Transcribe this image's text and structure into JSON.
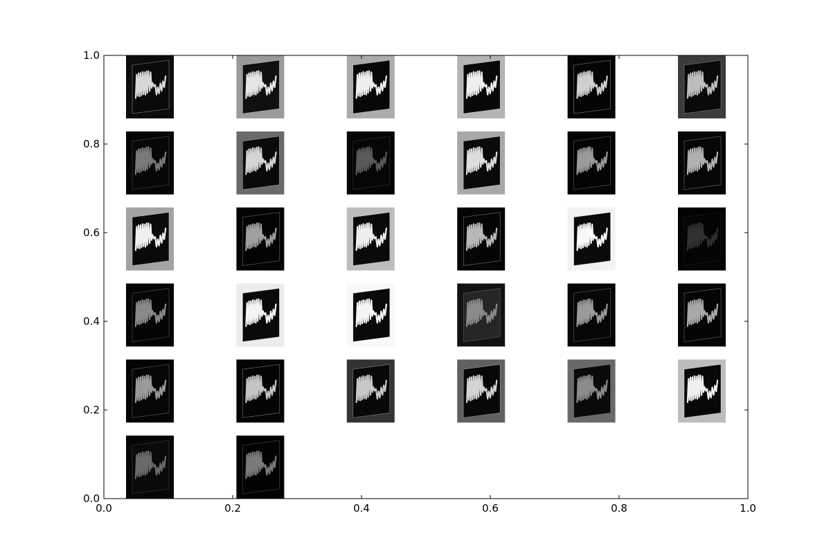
{
  "chart_data": {
    "type": "image-grid",
    "title": "",
    "xlabel": "",
    "ylabel": "",
    "xlim": [
      0.0,
      1.0
    ],
    "ylim": [
      0.0,
      1.0
    ],
    "grid": false,
    "legend": "none",
    "x_ticks": [
      "0.0",
      "0.2",
      "0.4",
      "0.6",
      "0.8",
      "1.0"
    ],
    "y_ticks": [
      "0.0",
      "0.2",
      "0.4",
      "0.6",
      "0.8",
      "1.0"
    ],
    "grid_layout": {
      "rows": 6,
      "columns": 6,
      "tiles_shown": 32
    },
    "tile_content": "grayscale feature-map thumbnail of a tilted sheet with a wavy trace",
    "tiles": [
      {
        "row": 1,
        "col": 1,
        "background": "#0c0c0c",
        "sheet": "#0a0a0a",
        "trace": "#d8d8d8"
      },
      {
        "row": 1,
        "col": 2,
        "background": "#9a9a9a",
        "sheet": "#101010",
        "trace": "#e6e6e6"
      },
      {
        "row": 1,
        "col": 3,
        "background": "#ababab",
        "sheet": "#080808",
        "trace": "#eeeeee"
      },
      {
        "row": 1,
        "col": 4,
        "background": "#b4b4b4",
        "sheet": "#080808",
        "trace": "#eeeeee"
      },
      {
        "row": 1,
        "col": 5,
        "background": "#050505",
        "sheet": "#050505",
        "trace": "#d0d0d0"
      },
      {
        "row": 1,
        "col": 6,
        "background": "#3c3c3c",
        "sheet": "#0a0a0a",
        "trace": "#bdbdbd"
      },
      {
        "row": 2,
        "col": 1,
        "background": "#050505",
        "sheet": "#070707",
        "trace": "#7a7a7a"
      },
      {
        "row": 2,
        "col": 2,
        "background": "#6a6a6a",
        "sheet": "#0a0a0a",
        "trace": "#d4d4d4"
      },
      {
        "row": 2,
        "col": 3,
        "background": "#040404",
        "sheet": "#060606",
        "trace": "#5a5a5a"
      },
      {
        "row": 2,
        "col": 4,
        "background": "#a8a8a8",
        "sheet": "#0a0a0a",
        "trace": "#dddddd"
      },
      {
        "row": 2,
        "col": 5,
        "background": "#040404",
        "sheet": "#040404",
        "trace": "#9a9a9a"
      },
      {
        "row": 2,
        "col": 6,
        "background": "#060606",
        "sheet": "#060606",
        "trace": "#b0b0b0"
      },
      {
        "row": 3,
        "col": 1,
        "background": "#a3a3a3",
        "sheet": "#0a0a0a",
        "trace": "#f0f0f0"
      },
      {
        "row": 3,
        "col": 2,
        "background": "#040404",
        "sheet": "#040404",
        "trace": "#a0a0a0"
      },
      {
        "row": 3,
        "col": 3,
        "background": "#bdbdbd",
        "sheet": "#0a0a0a",
        "trace": "#eeeeee"
      },
      {
        "row": 3,
        "col": 4,
        "background": "#050505",
        "sheet": "#050505",
        "trace": "#b8b8b8"
      },
      {
        "row": 3,
        "col": 5,
        "background": "#f2f2f2",
        "sheet": "#0a0a0a",
        "trace": "#f8f8f8"
      },
      {
        "row": 3,
        "col": 6,
        "background": "#030303",
        "sheet": "#040404",
        "trace": "#303030"
      },
      {
        "row": 4,
        "col": 1,
        "background": "#040404",
        "sheet": "#050505",
        "trace": "#8a8a8a"
      },
      {
        "row": 4,
        "col": 2,
        "background": "#ececec",
        "sheet": "#0a0a0a",
        "trace": "#f4f4f4"
      },
      {
        "row": 4,
        "col": 3,
        "background": "#f8f8f8",
        "sheet": "#0a0a0a",
        "trace": "#f6f6f6"
      },
      {
        "row": 4,
        "col": 4,
        "background": "#121212",
        "sheet": "#262626",
        "trace": "#8a8a8a"
      },
      {
        "row": 4,
        "col": 5,
        "background": "#060606",
        "sheet": "#060606",
        "trace": "#9a9a9a"
      },
      {
        "row": 4,
        "col": 6,
        "background": "#050505",
        "sheet": "#050505",
        "trace": "#a8a8a8"
      },
      {
        "row": 5,
        "col": 1,
        "background": "#040404",
        "sheet": "#060606",
        "trace": "#9a9a9a"
      },
      {
        "row": 5,
        "col": 2,
        "background": "#040404",
        "sheet": "#050505",
        "trace": "#c4c4c4"
      },
      {
        "row": 5,
        "col": 3,
        "background": "#333333",
        "sheet": "#080808",
        "trace": "#c8c8c8"
      },
      {
        "row": 5,
        "col": 4,
        "background": "#606060",
        "sheet": "#080808",
        "trace": "#d4d4d4"
      },
      {
        "row": 5,
        "col": 5,
        "background": "#696969",
        "sheet": "#0a0a0a",
        "trace": "#8c8c8c"
      },
      {
        "row": 5,
        "col": 6,
        "background": "#bdbdbd",
        "sheet": "#080808",
        "trace": "#f0f0f0"
      },
      {
        "row": 6,
        "col": 1,
        "background": "#060606",
        "sheet": "#0a0a0a",
        "trace": "#6a6a6a"
      },
      {
        "row": 6,
        "col": 2,
        "background": "#020202",
        "sheet": "#030303",
        "trace": "#7a7a7a"
      }
    ]
  }
}
